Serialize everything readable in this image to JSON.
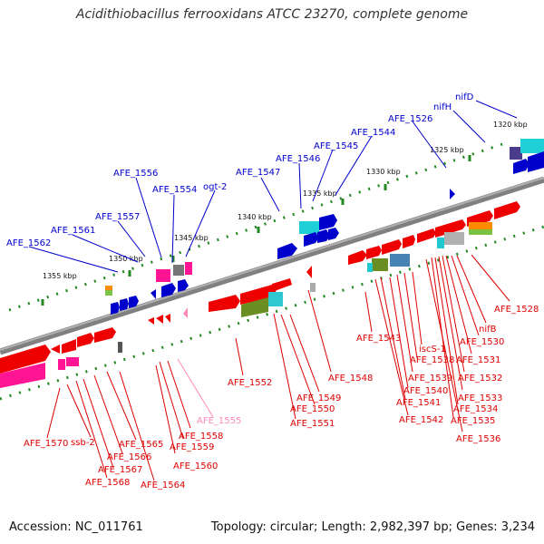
{
  "title": "Acidithiobacillus ferrooxidans ATCC 23270, complete genome",
  "footer": {
    "accession": "Accession: NC_011761",
    "stats": "Topology: circular; Length: 2,982,397 bp; Genes: 3,234"
  },
  "colors": {
    "forward_label": "#0000cc",
    "reverse_label": "#dd0000",
    "highlight_label": "#ff88bb",
    "backbone": "#808080",
    "tick": "#228822"
  },
  "kbp_ticks": [
    "1320 kbp",
    "1325 kbp",
    "1330 kbp",
    "1335 kbp",
    "1340 kbp",
    "1345 kbp",
    "1350 kbp",
    "1355 kbp"
  ],
  "forward_genes": [
    "nifD",
    "nifH",
    "AFE_1526",
    "AFE_1544",
    "AFE_1545",
    "AFE_1546",
    "AFE_1547",
    "ogt-2",
    "AFE_1554",
    "AFE_1556",
    "AFE_1557",
    "AFE_1561",
    "AFE_1562"
  ],
  "reverse_genes": [
    "AFE_1528",
    "nifB",
    "AFE_1530",
    "AFE_1531",
    "AFE_1532",
    "AFE_1533",
    "AFE_1534",
    "AFE_1535",
    "AFE_1536",
    "iscS-1",
    "AFE_1538",
    "AFE_1539",
    "AFE_1540",
    "AFE_1541",
    "AFE_1542",
    "AFE_1543",
    "AFE_1548",
    "AFE_1549",
    "AFE_1550",
    "AFE_1551",
    "AFE_1552",
    "AFE_1555",
    "AFE_1558",
    "AFE_1559",
    "AFE_1560",
    "AFE_1564",
    "AFE_1565",
    "AFE_1566",
    "AFE_1567",
    "AFE_1568",
    "ssb-2",
    "AFE_1570"
  ]
}
